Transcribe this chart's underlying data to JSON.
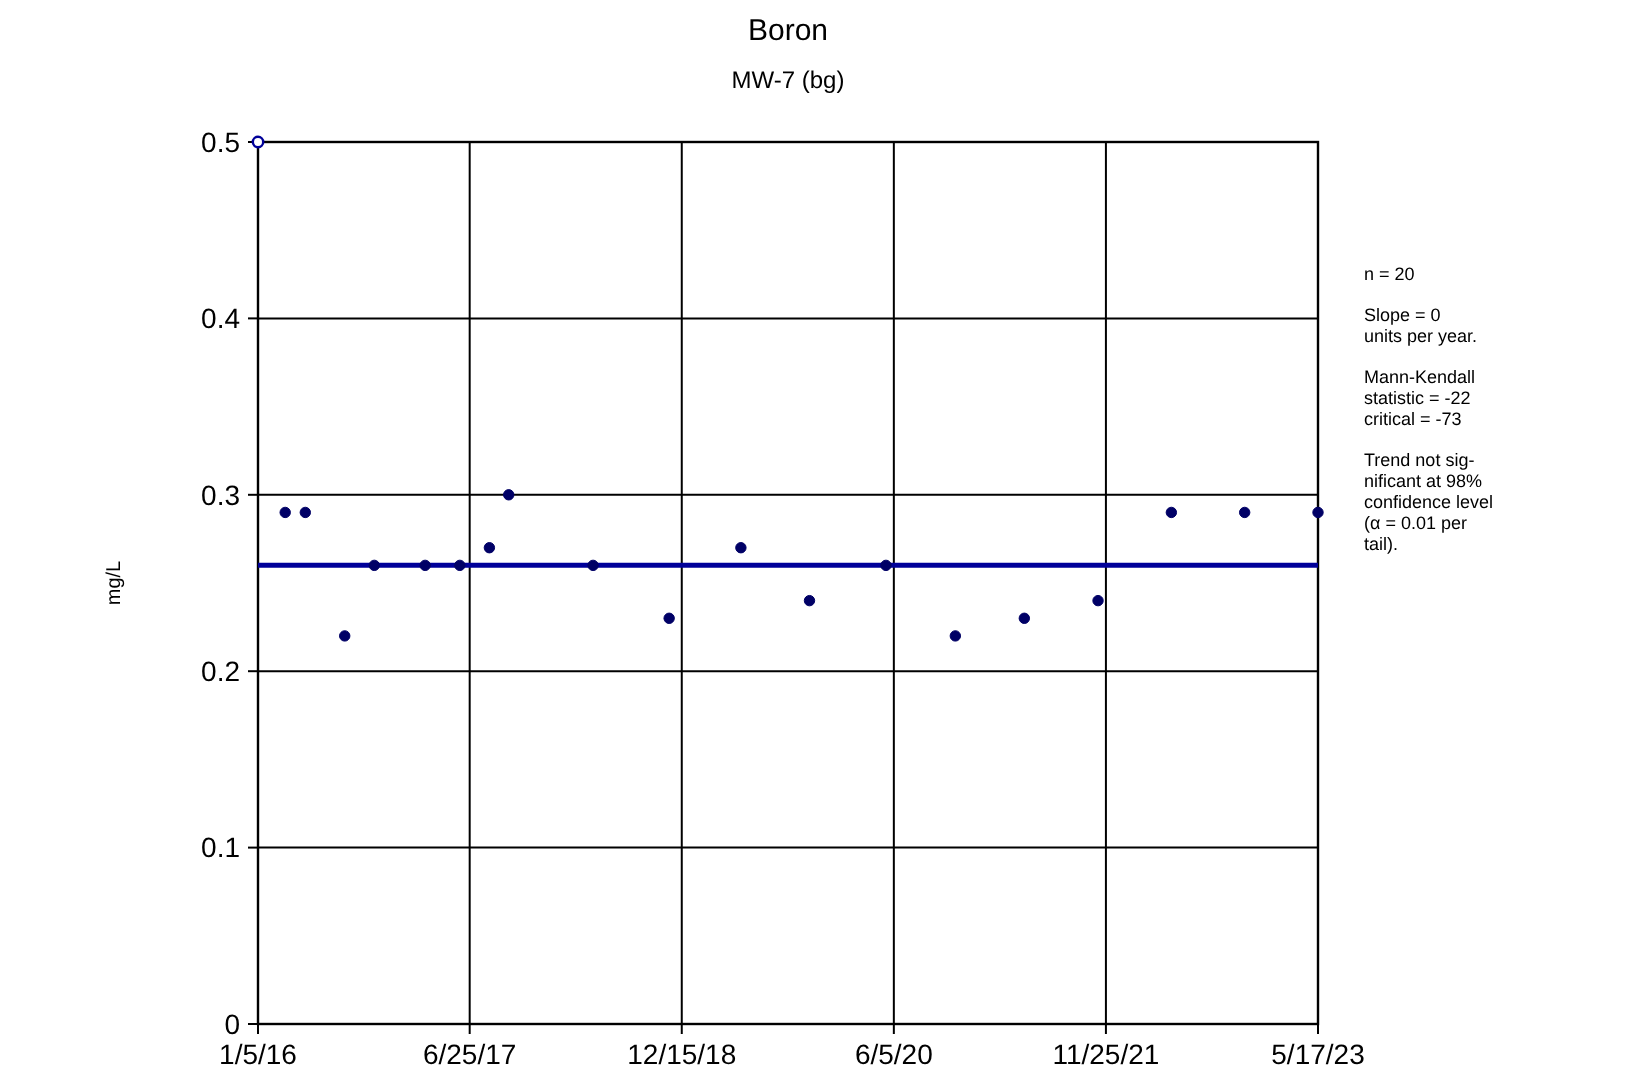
{
  "chart_data": {
    "type": "scatter",
    "title": "Boron",
    "subtitle": "MW-7 (bg)",
    "ylabel": "mg/L",
    "xlim": [
      "2016-01-05",
      "2023-05-17"
    ],
    "xticks": [
      {
        "value": "2016-01-05",
        "label": "1/5/16"
      },
      {
        "value": "2017-06-25",
        "label": "6/25/17"
      },
      {
        "value": "2018-12-15",
        "label": "12/15/18"
      },
      {
        "value": "2020-06-05",
        "label": "6/5/20"
      },
      {
        "value": "2021-11-25",
        "label": "11/25/21"
      },
      {
        "value": "2023-05-17",
        "label": "5/17/23"
      }
    ],
    "ylim": [
      0,
      0.5
    ],
    "yticks": [
      0,
      {
        "value": 0.1,
        "label": "0.1"
      },
      {
        "value": 0.2,
        "label": "0.2"
      },
      {
        "value": 0.3,
        "label": "0.3"
      },
      {
        "value": 0.4,
        "label": "0.4"
      },
      {
        "value": 0.5,
        "label": "0.5"
      }
    ],
    "grid": true,
    "marker": "circle",
    "series": [
      {
        "color": "#000066",
        "x": [
          "2016-03-14",
          "2016-05-04",
          "2016-08-12",
          "2016-10-26",
          "2017-03-04",
          "2017-05-31",
          "2017-08-14",
          "2017-10-02",
          "2018-05-04",
          "2018-11-13",
          "2019-05-14",
          "2019-11-04",
          "2020-05-16",
          "2020-11-08",
          "2021-05-02",
          "2021-11-05",
          "2022-05-10",
          "2022-11-12",
          "2023-05-17"
        ],
        "values": [
          0.29,
          0.29,
          0.22,
          0.26,
          0.26,
          0.26,
          0.27,
          0.3,
          0.26,
          0.23,
          0.27,
          0.24,
          0.26,
          0.22,
          0.23,
          0.24,
          0.29,
          0.29,
          0.29
        ]
      },
      {
        "type": "scatter",
        "color": "#000099",
        "x": [
          "2016-01-05"
        ],
        "values": [
          0.5
        ]
      },
      {
        "type": "line",
        "marker": "none",
        "color": "#000099",
        "x": [
          "2016-01-05",
          "2023-05-17"
        ],
        "values": [
          0.26,
          0.26
        ]
      }
    ],
    "annotations": [
      "n = 20",
      "Slope = 0\nunits per year.",
      "Mann-Kendall\nstatistic = -22\ncritical = -73",
      "Trend not sig-\nnificant at 98%\nconfidence level\n(α = 0.01 per\ntail)."
    ]
  }
}
